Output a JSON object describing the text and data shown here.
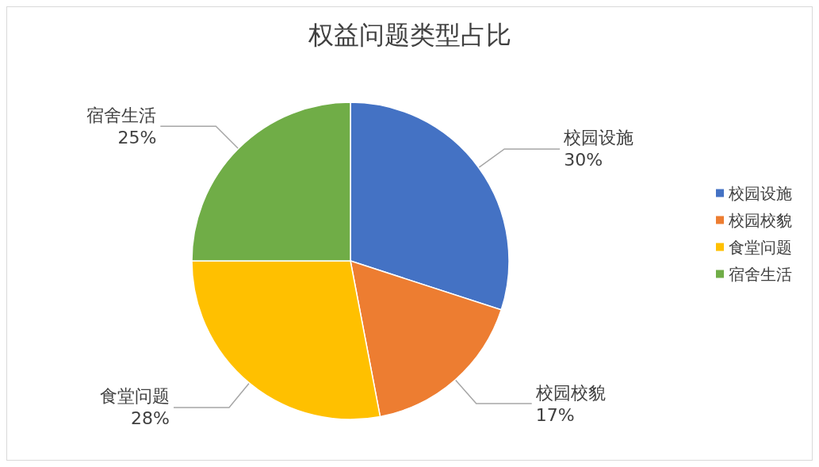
{
  "chart_data": {
    "type": "pie",
    "title": "权益问题类型占比",
    "categories": [
      "校园设施",
      "校园校貌",
      "食堂问题",
      "宿舍生活"
    ],
    "values": [
      30,
      17,
      28,
      25
    ],
    "colors": [
      "#4472c4",
      "#ed7d31",
      "#ffc000",
      "#70ad47"
    ],
    "value_labels": [
      "30%",
      "17%",
      "28%",
      "25%"
    ],
    "legend": "right"
  }
}
